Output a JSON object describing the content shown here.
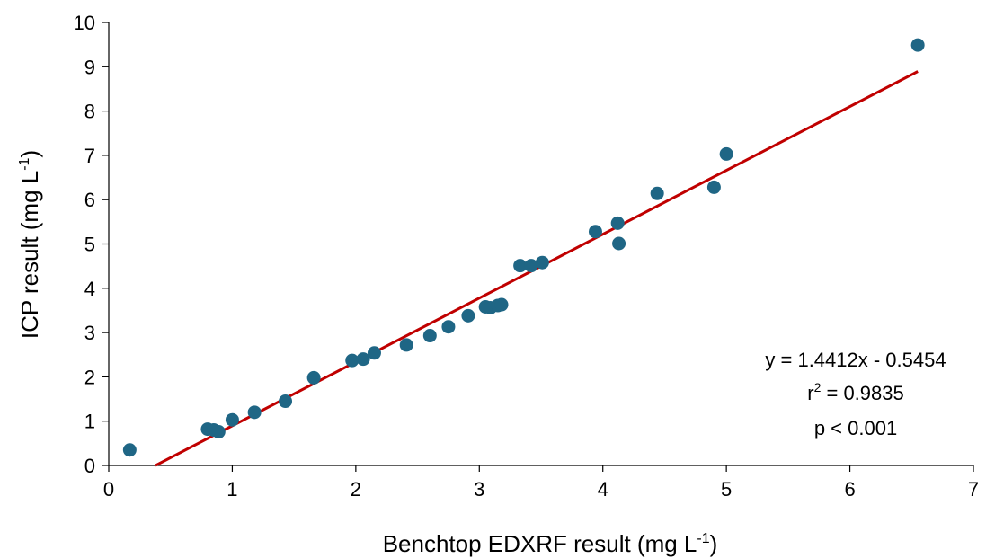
{
  "chart_data": {
    "type": "scatter",
    "xlabel": "Benchtop EDXRF result (mg L",
    "xlabel_sup": "-1",
    "xlabel_end": ")",
    "ylabel": "ICP result (mg L",
    "ylabel_sup": "-1",
    "ylabel_end": ")",
    "xlim": [
      0,
      7
    ],
    "ylim": [
      0,
      10
    ],
    "xticks": [
      "0",
      "1",
      "2",
      "3",
      "4",
      "5",
      "6",
      "7"
    ],
    "yticks": [
      "0",
      "1",
      "2",
      "3",
      "4",
      "5",
      "6",
      "7",
      "8",
      "9",
      "10"
    ],
    "grid": false,
    "point_color": "#1f6685",
    "trend_color": "#c00000",
    "points": [
      {
        "x": 0.17,
        "y": 0.35
      },
      {
        "x": 0.8,
        "y": 0.82
      },
      {
        "x": 0.85,
        "y": 0.8
      },
      {
        "x": 0.89,
        "y": 0.76
      },
      {
        "x": 1.0,
        "y": 1.03
      },
      {
        "x": 1.18,
        "y": 1.2
      },
      {
        "x": 1.43,
        "y": 1.45
      },
      {
        "x": 1.66,
        "y": 1.98
      },
      {
        "x": 1.97,
        "y": 2.37
      },
      {
        "x": 2.06,
        "y": 2.4
      },
      {
        "x": 2.15,
        "y": 2.54
      },
      {
        "x": 2.41,
        "y": 2.72
      },
      {
        "x": 2.6,
        "y": 2.93
      },
      {
        "x": 2.75,
        "y": 3.13
      },
      {
        "x": 2.91,
        "y": 3.38
      },
      {
        "x": 3.05,
        "y": 3.58
      },
      {
        "x": 3.09,
        "y": 3.56
      },
      {
        "x": 3.15,
        "y": 3.61
      },
      {
        "x": 3.18,
        "y": 3.63
      },
      {
        "x": 3.33,
        "y": 4.51
      },
      {
        "x": 3.42,
        "y": 4.51
      },
      {
        "x": 3.51,
        "y": 4.58
      },
      {
        "x": 3.94,
        "y": 5.28
      },
      {
        "x": 4.12,
        "y": 5.47
      },
      {
        "x": 4.13,
        "y": 5.01
      },
      {
        "x": 4.44,
        "y": 6.14
      },
      {
        "x": 4.9,
        "y": 6.28
      },
      {
        "x": 5.0,
        "y": 7.03
      },
      {
        "x": 6.55,
        "y": 9.49
      }
    ],
    "trendline": {
      "slope": 1.4412,
      "intercept": -0.5454,
      "x_range": [
        0.378,
        6.55
      ]
    },
    "annotations": {
      "equation": "y = 1.4412x - 0.5454",
      "r2_prefix": "r",
      "r2_sup": "2",
      "r2_suffix": " = 0.9835",
      "p_value": "p < 0.001"
    }
  }
}
